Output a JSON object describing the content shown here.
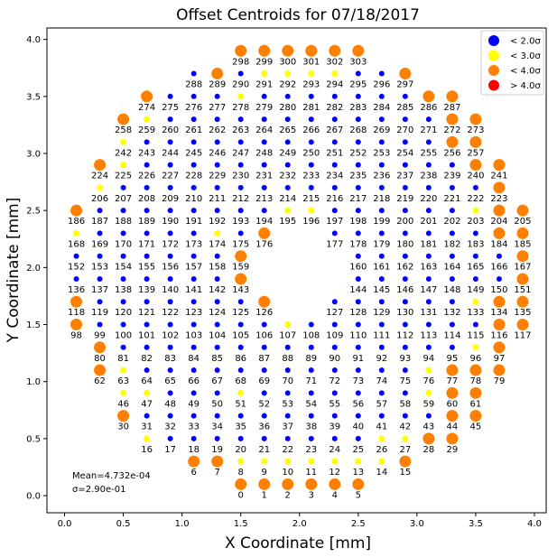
{
  "colors": {
    "lt2": "#0000ff",
    "lt3": "#ffff00",
    "lt4": "#ff8000",
    "gt4": "#ff0000"
  },
  "chart_data": {
    "type": "scatter",
    "title": "Offset Centroids for 07/18/2017",
    "xlabel": "X Coordinate [mm]",
    "ylabel": "Y Coordinate [mm]",
    "xlim": [
      -0.15,
      4.1
    ],
    "ylim": [
      -0.15,
      4.1
    ],
    "xticks": [
      "0.0",
      "0.5",
      "1.0",
      "1.5",
      "2.0",
      "2.5",
      "3.0",
      "3.5",
      "4.0"
    ],
    "yticks": [
      "0.0",
      "0.5",
      "1.0",
      "1.5",
      "2.0",
      "2.5",
      "3.0",
      "3.5",
      "4.0"
    ],
    "grid": false,
    "legend_position": "top-right",
    "legend": [
      {
        "label": "< 2.0σ",
        "category": "lt2"
      },
      {
        "label": "< 3.0σ",
        "category": "lt3"
      },
      {
        "label": "< 4.0σ",
        "category": "lt4"
      },
      {
        "label": "> 4.0σ",
        "category": "gt4"
      }
    ],
    "stats": [
      "Mean=4.732e-04",
      "σ=2.90e-01"
    ],
    "rows": [
      {
        "y": 0.1,
        "xs": [
          1.5,
          1.7,
          1.9,
          2.1,
          2.3,
          2.5
        ],
        "start": 0,
        "cats": "444444"
      },
      {
        "y": 0.3,
        "xs": [
          1.1,
          1.3,
          1.5,
          1.7,
          1.9,
          2.1,
          2.3,
          2.5,
          2.7,
          2.9
        ],
        "start": 6,
        "cats": "4433333334"
      },
      {
        "y": 0.5,
        "xs": [
          0.7,
          0.9,
          1.1,
          1.3,
          1.5,
          1.7,
          1.9,
          2.1,
          2.3,
          2.5,
          2.7,
          2.9,
          3.1,
          3.3
        ],
        "start": 16,
        "cats": "32222222223344"
      },
      {
        "y": 0.7,
        "xs": [
          0.5,
          0.7,
          0.9,
          1.1,
          1.3,
          1.5,
          1.7,
          1.9,
          2.1,
          2.3,
          2.5,
          2.7,
          2.9,
          3.1,
          3.3,
          3.5
        ],
        "start": 30,
        "cats": "4222222222222244"
      },
      {
        "y": 0.9,
        "xs": [
          0.5,
          0.7,
          0.9,
          1.1,
          1.3,
          1.5,
          1.7,
          1.9,
          2.1,
          2.3,
          2.5,
          2.7,
          2.9,
          3.1,
          3.3,
          3.5
        ],
        "start": 46,
        "cats": "3322232222222344"
      },
      {
        "y": 1.1,
        "xs": [
          0.3,
          0.5,
          0.7,
          0.9,
          1.1,
          1.3,
          1.5,
          1.7,
          1.9,
          2.1,
          2.3,
          2.5,
          2.7,
          2.9,
          3.1,
          3.3,
          3.5,
          3.7
        ],
        "start": 62,
        "cats": "432222222222223444"
      },
      {
        "y": 1.3,
        "xs": [
          0.3,
          0.5,
          0.7,
          0.9,
          1.1,
          1.3,
          1.5,
          1.7,
          1.9,
          2.1,
          2.3,
          2.5,
          2.7,
          2.9,
          3.1,
          3.3,
          3.5,
          3.7
        ],
        "start": 80,
        "cats": "422222222222222234"
      },
      {
        "y": 1.5,
        "xs": [
          0.1,
          0.3,
          0.5,
          0.7,
          0.9,
          1.1,
          1.3,
          1.5,
          1.7,
          1.9,
          2.1,
          2.3,
          2.5,
          2.7,
          2.9,
          3.1,
          3.3,
          3.5,
          3.7,
          3.9
        ],
        "start": 98,
        "cats": "42222222232222222244"
      },
      {
        "y": 1.7,
        "xs": [
          0.1,
          0.3,
          0.5,
          0.7,
          0.9,
          1.1,
          1.3,
          1.5,
          1.7,
          2.3,
          2.5,
          2.7,
          2.9,
          3.1,
          3.3,
          3.5,
          3.7,
          3.9
        ],
        "start": 118,
        "cats": "422222224222222344"
      },
      {
        "y": 1.9,
        "xs": [
          0.1,
          0.3,
          0.5,
          0.7,
          0.9,
          1.1,
          1.3,
          1.5,
          2.5,
          2.7,
          2.9,
          3.1,
          3.3,
          3.5,
          3.7,
          3.9
        ],
        "start": 136,
        "cats": "2222222422222224"
      },
      {
        "y": 2.1,
        "xs": [
          0.1,
          0.3,
          0.5,
          0.7,
          0.9,
          1.1,
          1.3,
          1.5,
          2.5,
          2.7,
          2.9,
          3.1,
          3.3,
          3.5,
          3.7,
          3.9
        ],
        "start": 152,
        "cats": "2222222422222224"
      },
      {
        "y": 2.3,
        "xs": [
          0.1,
          0.3,
          0.5,
          0.7,
          0.9,
          1.1,
          1.3,
          1.5,
          1.7,
          2.3,
          2.5,
          2.7,
          2.9,
          3.1,
          3.3,
          3.5,
          3.7,
          3.9
        ],
        "start": 168,
        "cats": "322222324222222244"
      },
      {
        "y": 2.5,
        "xs": [
          0.1,
          0.3,
          0.5,
          0.7,
          0.9,
          1.1,
          1.3,
          1.5,
          1.7,
          1.9,
          2.1,
          2.3,
          2.5,
          2.7,
          2.9,
          3.1,
          3.3,
          3.5,
          3.7,
          3.9
        ],
        "start": 186,
        "cats": "42222222233222222344"
      },
      {
        "y": 2.7,
        "xs": [
          0.3,
          0.5,
          0.7,
          0.9,
          1.1,
          1.3,
          1.5,
          1.7,
          1.9,
          2.1,
          2.3,
          2.5,
          2.7,
          2.9,
          3.1,
          3.3,
          3.5,
          3.7
        ],
        "start": 206,
        "cats": "322222222222222224"
      },
      {
        "y": 2.9,
        "xs": [
          0.3,
          0.5,
          0.7,
          0.9,
          1.1,
          1.3,
          1.5,
          1.7,
          1.9,
          2.1,
          2.3,
          2.5,
          2.7,
          2.9,
          3.1,
          3.3,
          3.5,
          3.7
        ],
        "start": 224,
        "cats": "432222222222222244"
      },
      {
        "y": 3.1,
        "xs": [
          0.5,
          0.7,
          0.9,
          1.1,
          1.3,
          1.5,
          1.7,
          1.9,
          2.1,
          2.3,
          2.5,
          2.7,
          2.9,
          3.1,
          3.3,
          3.5
        ],
        "start": 242,
        "cats": "3222222222222244"
      },
      {
        "y": 3.3,
        "xs": [
          0.5,
          0.7,
          0.9,
          1.1,
          1.3,
          1.5,
          1.7,
          1.9,
          2.1,
          2.3,
          2.5,
          2.7,
          2.9,
          3.1,
          3.3,
          3.5
        ],
        "start": 258,
        "cats": "4322222222222244"
      },
      {
        "y": 3.5,
        "xs": [
          0.7,
          0.9,
          1.1,
          1.3,
          1.5,
          1.7,
          1.9,
          2.1,
          2.3,
          2.5,
          2.7,
          2.9,
          3.1,
          3.3
        ],
        "start": 274,
        "cats": "42223222222244"
      },
      {
        "y": 3.7,
        "xs": [
          1.1,
          1.3,
          1.5,
          1.7,
          1.9,
          2.1,
          2.3,
          2.5,
          2.7,
          2.9
        ],
        "start": 288,
        "cats": "2423333224"
      },
      {
        "y": 3.9,
        "xs": [
          1.5,
          1.7,
          1.9,
          2.1,
          2.3,
          2.5
        ],
        "start": 298,
        "cats": "444444"
      }
    ]
  }
}
